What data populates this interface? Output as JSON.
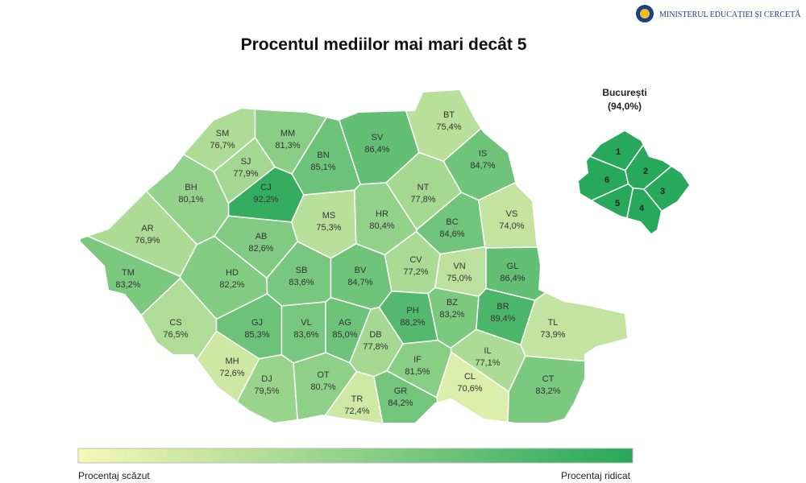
{
  "header": {
    "ministry": "MINISTERUL EDUCAȚIEI ȘI CERCETĂ"
  },
  "title": "Procentul mediilor mai mari decât 5",
  "colors": [
    "#f6f8b6",
    "#27a85a"
  ],
  "counties": [
    {
      "code": "SM",
      "value": 76.7,
      "label": "76,7%"
    },
    {
      "code": "MM",
      "value": 81.3,
      "label": "81,3%"
    },
    {
      "code": "BT",
      "value": 75.4,
      "label": "75,4%"
    },
    {
      "code": "SV",
      "value": 86.4,
      "label": "86,4%"
    },
    {
      "code": "BN",
      "value": 85.1,
      "label": "85,1%"
    },
    {
      "code": "IS",
      "value": 84.7,
      "label": "84,7%"
    },
    {
      "code": "SJ",
      "value": 77.9,
      "label": "77,9%"
    },
    {
      "code": "CJ",
      "value": 92.2,
      "label": "92,2%"
    },
    {
      "code": "BH",
      "value": 80.1,
      "label": "80,1%"
    },
    {
      "code": "NT",
      "value": 77.8,
      "label": "77,8%"
    },
    {
      "code": "MS",
      "value": 75.3,
      "label": "75,3%"
    },
    {
      "code": "HR",
      "value": 80.4,
      "label": "80,4%"
    },
    {
      "code": "BC",
      "value": 84.6,
      "label": "84,6%"
    },
    {
      "code": "VS",
      "value": 74.0,
      "label": "74,0%"
    },
    {
      "code": "AR",
      "value": 76.9,
      "label": "76,9%"
    },
    {
      "code": "AB",
      "value": 82.6,
      "label": "82,6%"
    },
    {
      "code": "TM",
      "value": 83.2,
      "label": "83,2%"
    },
    {
      "code": "HD",
      "value": 82.2,
      "label": "82,2%"
    },
    {
      "code": "SB",
      "value": 83.6,
      "label": "83,6%"
    },
    {
      "code": "BV",
      "value": 84.7,
      "label": "84,7%"
    },
    {
      "code": "CV",
      "value": 77.2,
      "label": "77,2%"
    },
    {
      "code": "VN",
      "value": 75.0,
      "label": "75,0%"
    },
    {
      "code": "GL",
      "value": 86.4,
      "label": "86,4%"
    },
    {
      "code": "CS",
      "value": 76.5,
      "label": "76,5%"
    },
    {
      "code": "GJ",
      "value": 85.3,
      "label": "85,3%"
    },
    {
      "code": "VL",
      "value": 83.6,
      "label": "83,6%"
    },
    {
      "code": "AG",
      "value": 85.0,
      "label": "85,0%"
    },
    {
      "code": "DB",
      "value": 77.8,
      "label": "77,8%"
    },
    {
      "code": "PH",
      "value": 88.2,
      "label": "88,2%"
    },
    {
      "code": "BZ",
      "value": 83.2,
      "label": "83,2%"
    },
    {
      "code": "BR",
      "value": 89.4,
      "label": "89,4%"
    },
    {
      "code": "TL",
      "value": 73.9,
      "label": "73,9%"
    },
    {
      "code": "MH",
      "value": 72.6,
      "label": "72,6%"
    },
    {
      "code": "DJ",
      "value": 79.5,
      "label": "79,5%"
    },
    {
      "code": "OT",
      "value": 80.7,
      "label": "80,7%"
    },
    {
      "code": "IF",
      "value": 81.5,
      "label": "81,5%"
    },
    {
      "code": "IL",
      "value": 77.1,
      "label": "77,1%"
    },
    {
      "code": "CL",
      "value": 70.6,
      "label": "70,6%"
    },
    {
      "code": "TR",
      "value": 72.4,
      "label": "72,4%"
    },
    {
      "code": "GR",
      "value": 84.2,
      "label": "84,2%"
    },
    {
      "code": "CT",
      "value": 83.2,
      "label": "83,2%"
    }
  ],
  "bucharest": {
    "title": "București",
    "value": 94.0,
    "label": "(94,0%)",
    "sectors": [
      "1",
      "2",
      "3",
      "4",
      "5",
      "6"
    ]
  },
  "legend": {
    "low": "Procentaj scăzut",
    "high": "Procentaj ridicat"
  }
}
